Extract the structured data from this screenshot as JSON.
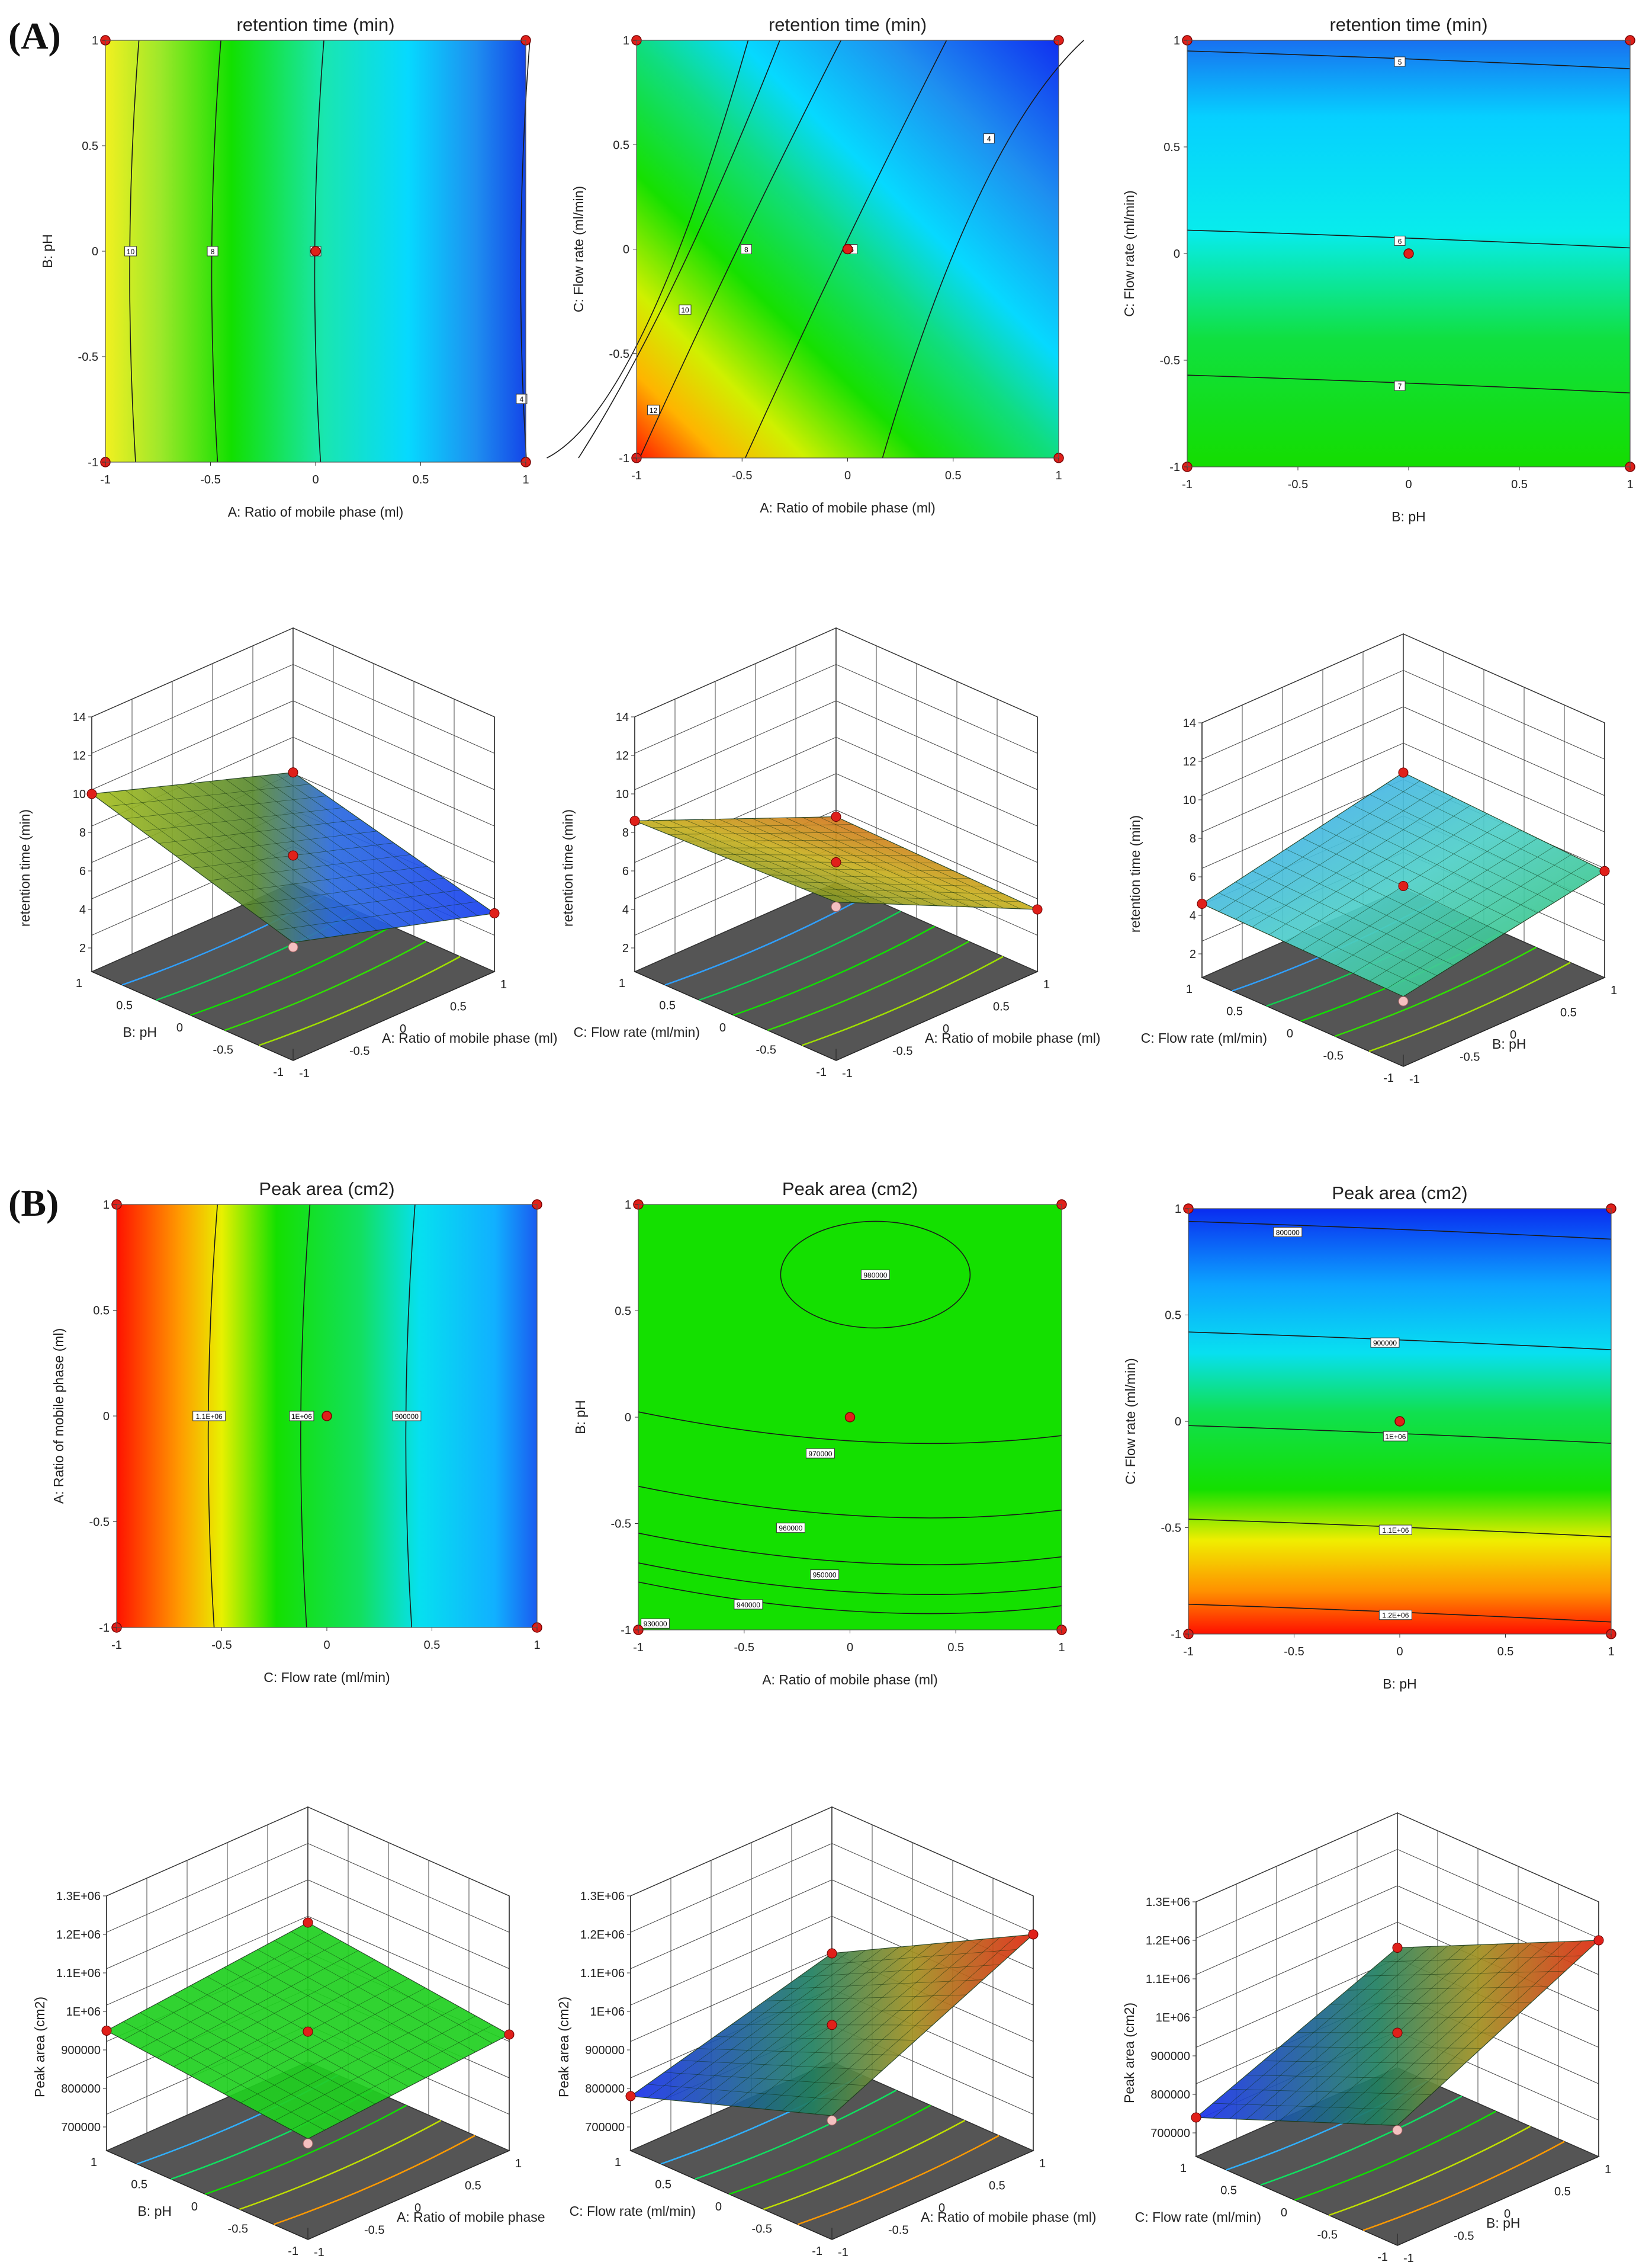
{
  "panel_labels": [
    "(A)",
    "(B)"
  ],
  "chart_data": [
    {
      "id": "A1",
      "type": "contour",
      "title": "retention time (min)",
      "xlabel": "A: Ratio of mobile phase (ml)",
      "ylabel": "B: pH",
      "xlim": [
        -1,
        1
      ],
      "ylim": [
        -1,
        1
      ],
      "xticks": [
        "-1",
        "-0.5",
        "0",
        "0.5",
        "1"
      ],
      "yticks": [
        "-1",
        "-0.5",
        "0",
        "0.5",
        "1"
      ],
      "design_points": [
        [
          -1,
          1
        ],
        [
          1,
          1
        ],
        [
          -1,
          -1
        ],
        [
          1,
          -1
        ],
        [
          0,
          0
        ]
      ],
      "contours": [
        {
          "label": "10",
          "x": -0.88,
          "curve": 0.04
        },
        {
          "label": "8",
          "x": -0.49,
          "curve": 0.03
        },
        {
          "label": "6",
          "x": 0.02,
          "curve": 0.01
        },
        {
          "label": "4",
          "x": 0.99,
          "curve": 0.0
        }
      ],
      "contour_labels": [
        {
          "text": "10",
          "x": -0.88,
          "y": 0.0
        },
        {
          "text": "8",
          "x": -0.49,
          "y": 0.0
        },
        {
          "text": "6",
          "x": 0.0,
          "y": 0.0
        },
        {
          "text": "4",
          "x": 0.98,
          "y": -0.7
        }
      ]
    },
    {
      "id": "A2",
      "type": "contour",
      "title": "retention time (min)",
      "xlabel": "A: Ratio of mobile phase (ml)",
      "ylabel": "C: Flow rate (ml/min)",
      "xlim": [
        -1,
        1
      ],
      "ylim": [
        -1,
        1
      ],
      "xticks": [
        "-1",
        "-0.5",
        "0",
        "0.5",
        "1"
      ],
      "yticks": [
        "-1",
        "-0.5",
        "0",
        "0.5",
        "1"
      ],
      "design_points": [
        [
          -1,
          1
        ],
        [
          1,
          1
        ],
        [
          -1,
          -1
        ],
        [
          1,
          -1
        ],
        [
          0,
          0
        ]
      ],
      "contour_labels": [
        {
          "text": "12",
          "x": -0.92,
          "y": -0.77
        },
        {
          "text": "10",
          "x": -0.77,
          "y": -0.29
        },
        {
          "text": "8",
          "x": -0.48,
          "y": 0.0
        },
        {
          "text": "6",
          "x": 0.02,
          "y": 0.0
        },
        {
          "text": "4",
          "x": 0.67,
          "y": 0.53
        }
      ]
    },
    {
      "id": "A3",
      "type": "contour",
      "title": "retention time (min)",
      "xlabel": "B: pH",
      "ylabel": "C: Flow rate (ml/min)",
      "xlim": [
        -1,
        1
      ],
      "ylim": [
        -1,
        1
      ],
      "xticks": [
        "-1",
        "-0.5",
        "0",
        "0.5",
        "1"
      ],
      "yticks": [
        "-1",
        "-0.5",
        "0",
        "0.5",
        "1"
      ],
      "design_points": [
        [
          -1,
          1
        ],
        [
          1,
          1
        ],
        [
          -1,
          -1
        ],
        [
          1,
          -1
        ],
        [
          0,
          0
        ]
      ],
      "contour_labels": [
        {
          "text": "5",
          "x": -0.04,
          "y": 0.9
        },
        {
          "text": "6",
          "x": -0.04,
          "y": 0.06
        },
        {
          "text": "7",
          "x": -0.04,
          "y": -0.62
        }
      ]
    },
    {
      "id": "A4",
      "type": "surface3d",
      "zlabel": "retention time (min)",
      "zticks": [
        "2",
        "4",
        "6",
        "8",
        "10",
        "12",
        "14"
      ],
      "left_axis_label": "B: pH",
      "right_axis_label": "A: Ratio of mobile phase (ml)",
      "left_ticks": [
        "1",
        "0.5",
        "0",
        "-0.5",
        "-1"
      ],
      "right_ticks": [
        "-1",
        "-0.5",
        "0",
        "0.5",
        "1"
      ],
      "corner_values": [
        10,
        6.5,
        3.8,
        6.9
      ]
    },
    {
      "id": "A5",
      "type": "surface3d",
      "zlabel": "retention time (min)",
      "zticks": [
        "2",
        "4",
        "6",
        "8",
        "10",
        "12",
        "14"
      ],
      "left_axis_label": "C: Flow rate (ml/min)",
      "right_axis_label": "A: Ratio of mobile phase (ml)",
      "left_ticks": [
        "1",
        "0.5",
        "0",
        "-0.5",
        "-1"
      ],
      "right_ticks": [
        "-1",
        "-0.5",
        "0",
        "0.5",
        "1"
      ],
      "corner_values": [
        8.6,
        4.2,
        4.0,
        9.0
      ]
    },
    {
      "id": "A6",
      "type": "surface3d",
      "zlabel": "retention time (min)",
      "zticks": [
        "2",
        "4",
        "6",
        "8",
        "10",
        "12",
        "14"
      ],
      "left_axis_label": "C: Flow rate (ml/min)",
      "right_axis_label": "B: pH",
      "left_ticks": [
        "1",
        "0.5",
        "0",
        "-0.5",
        "-1"
      ],
      "right_ticks": [
        "-1",
        "-0.5",
        "0",
        "0.5",
        "1"
      ],
      "corner_values": [
        4.6,
        6.8,
        6.3,
        4.4
      ]
    },
    {
      "id": "B1",
      "type": "contour",
      "title": "Peak area (cm2)",
      "xlabel": "C: Flow rate (ml/min)",
      "ylabel": "A: Ratio of mobile phase (ml)",
      "xlim": [
        -1,
        1
      ],
      "ylim": [
        -1,
        1
      ],
      "xticks": [
        "-1",
        "-0.5",
        "0",
        "0.5",
        "1"
      ],
      "yticks": [
        "-1",
        "-0.5",
        "0",
        "0.5",
        "1"
      ],
      "design_points": [
        [
          -1,
          1
        ],
        [
          1,
          1
        ],
        [
          -1,
          -1
        ],
        [
          1,
          -1
        ],
        [
          0,
          0
        ]
      ],
      "contour_labels": [
        {
          "text": "1.1E+06",
          "x": -0.56,
          "y": 0.0
        },
        {
          "text": "1E+06",
          "x": -0.12,
          "y": 0.0
        },
        {
          "text": "900000",
          "x": 0.38,
          "y": 0.0
        }
      ]
    },
    {
      "id": "B2",
      "type": "contour",
      "title": "Peak area (cm2)",
      "xlabel": "A: Ratio of mobile phase (ml)",
      "ylabel": "B: pH",
      "xlim": [
        -1,
        1
      ],
      "ylim": [
        -1,
        1
      ],
      "xticks": [
        "-1",
        "-0.5",
        "0",
        "0.5",
        "1"
      ],
      "yticks": [
        "-1",
        "-0.5",
        "0",
        "0.5",
        "1"
      ],
      "design_points": [
        [
          -1,
          1
        ],
        [
          1,
          1
        ],
        [
          -1,
          -1
        ],
        [
          1,
          -1
        ],
        [
          0,
          0
        ]
      ],
      "contour_labels": [
        {
          "text": "980000",
          "x": 0.12,
          "y": 0.67
        },
        {
          "text": "970000",
          "x": -0.14,
          "y": -0.17
        },
        {
          "text": "960000",
          "x": -0.28,
          "y": -0.52
        },
        {
          "text": "950000",
          "x": -0.12,
          "y": -0.74
        },
        {
          "text": "940000",
          "x": -0.48,
          "y": -0.88
        },
        {
          "text": "930000",
          "x": -0.92,
          "y": -0.97
        }
      ]
    },
    {
      "id": "B3",
      "type": "contour",
      "title": "Peak area (cm2)",
      "xlabel": "B: pH",
      "ylabel": "C: Flow rate (ml/min)",
      "xlim": [
        -1,
        1
      ],
      "ylim": [
        -1,
        1
      ],
      "xticks": [
        "-1",
        "-0.5",
        "0",
        "0.5",
        "1"
      ],
      "yticks": [
        "-1",
        "-0.5",
        "0",
        "0.5",
        "1"
      ],
      "design_points": [
        [
          -1,
          1
        ],
        [
          1,
          1
        ],
        [
          -1,
          -1
        ],
        [
          1,
          -1
        ],
        [
          0,
          0
        ]
      ],
      "contour_labels": [
        {
          "text": "800000",
          "x": -0.53,
          "y": 0.89
        },
        {
          "text": "900000",
          "x": -0.07,
          "y": 0.37
        },
        {
          "text": "1E+06",
          "x": -0.02,
          "y": -0.07
        },
        {
          "text": "1.1E+06",
          "x": -0.02,
          "y": -0.51
        },
        {
          "text": "1.2E+06",
          "x": -0.02,
          "y": -0.91
        }
      ]
    },
    {
      "id": "B4",
      "type": "surface3d",
      "zlabel": "Peak area (cm2)",
      "zticks": [
        "700000",
        "800000",
        "900000",
        "1E+06",
        "1.1E+06",
        "1.2E+06",
        "1.3E+06"
      ],
      "left_axis_label": "B: pH",
      "right_axis_label": "A: Ratio of mobile phase",
      "left_ticks": [
        "1",
        "0.5",
        "0",
        "-0.5",
        "-1"
      ],
      "right_ticks": [
        "-1",
        "-0.5",
        "0",
        "0.5",
        "1"
      ],
      "corner_values": [
        950000,
        1000000,
        940000,
        900000
      ]
    },
    {
      "id": "B5",
      "type": "surface3d",
      "zlabel": "Peak area (cm2)",
      "zticks": [
        "700000",
        "800000",
        "900000",
        "1E+06",
        "1.1E+06",
        "1.2E+06",
        "1.3E+06"
      ],
      "left_axis_label": "C: Flow rate (ml/min)",
      "right_axis_label": "A: Ratio of mobile phase (ml)",
      "left_ticks": [
        "1",
        "0.5",
        "0",
        "-0.5",
        "-1"
      ],
      "right_ticks": [
        "-1",
        "-0.5",
        "0",
        "0.5",
        "1"
      ],
      "corner_values": [
        780000,
        920000,
        1200000,
        960000
      ]
    },
    {
      "id": "B6",
      "type": "surface3d",
      "zlabel": "Peak area (cm2)",
      "zticks": [
        "700000",
        "800000",
        "900000",
        "1E+06",
        "1.1E+06",
        "1.2E+06",
        "1.3E+06"
      ],
      "left_axis_label": "C: Flow rate (ml/min)",
      "right_axis_label": "B: pH",
      "left_ticks": [
        "1",
        "0.5",
        "0",
        "-0.5",
        "-1"
      ],
      "right_ticks": [
        "-1",
        "-0.5",
        "0",
        "0.5",
        "1"
      ],
      "corner_values": [
        740000,
        950000,
        1200000,
        950000
      ]
    }
  ]
}
